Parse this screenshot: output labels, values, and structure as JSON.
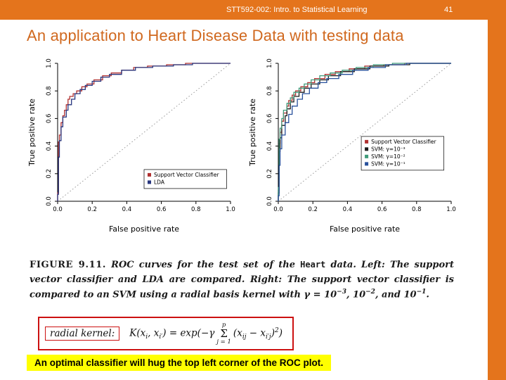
{
  "header": {
    "course": "STT592-002: Intro. to Statistical Learning",
    "page": "41",
    "accent": "#e4741c"
  },
  "title": "An application to Heart Disease Data with testing data",
  "chart_data": [
    {
      "type": "line",
      "title": "",
      "xlabel": "False positive rate",
      "ylabel": "True positive rate",
      "xlim": [
        0,
        1
      ],
      "ylim": [
        0,
        1
      ],
      "xticks": [
        0.0,
        0.2,
        0.4,
        0.6,
        0.8,
        1.0
      ],
      "yticks": [
        0.0,
        0.2,
        0.4,
        0.6,
        0.8,
        1.0
      ],
      "grid": false,
      "diagonal": true,
      "legend_position": "bottom-right",
      "legend": {
        "x": 0.5,
        "y": 0.23
      },
      "series": [
        {
          "name": "Support Vector Classifier",
          "color": "#b03030",
          "points": [
            [
              0,
              0
            ],
            [
              0.005,
              0.06
            ],
            [
              0.01,
              0.43
            ],
            [
              0.02,
              0.48
            ],
            [
              0.03,
              0.57
            ],
            [
              0.04,
              0.62
            ],
            [
              0.05,
              0.66
            ],
            [
              0.06,
              0.7
            ],
            [
              0.07,
              0.74
            ],
            [
              0.09,
              0.76
            ],
            [
              0.11,
              0.78
            ],
            [
              0.14,
              0.8
            ],
            [
              0.17,
              0.83
            ],
            [
              0.21,
              0.85
            ],
            [
              0.26,
              0.88
            ],
            [
              0.31,
              0.91
            ],
            [
              0.37,
              0.93
            ],
            [
              0.44,
              0.95
            ],
            [
              0.52,
              0.97
            ],
            [
              0.63,
              0.98
            ],
            [
              0.74,
              0.99
            ],
            [
              0.84,
              1.0
            ],
            [
              1,
              1
            ]
          ]
        },
        {
          "name": "LDA",
          "color": "#27357e",
          "points": [
            [
              0,
              0
            ],
            [
              0.005,
              0.05
            ],
            [
              0.01,
              0.32
            ],
            [
              0.02,
              0.44
            ],
            [
              0.03,
              0.54
            ],
            [
              0.05,
              0.61
            ],
            [
              0.06,
              0.66
            ],
            [
              0.08,
              0.7
            ],
            [
              0.1,
              0.74
            ],
            [
              0.13,
              0.78
            ],
            [
              0.16,
              0.81
            ],
            [
              0.2,
              0.84
            ],
            [
              0.25,
              0.87
            ],
            [
              0.3,
              0.9
            ],
            [
              0.37,
              0.92
            ],
            [
              0.45,
              0.95
            ],
            [
              0.55,
              0.97
            ],
            [
              0.67,
              0.98
            ],
            [
              0.78,
              0.99
            ],
            [
              0.88,
              1.0
            ],
            [
              1,
              1
            ]
          ]
        }
      ]
    },
    {
      "type": "line",
      "title": "",
      "xlabel": "False positive rate",
      "ylabel": "True positive rate",
      "xlim": [
        0,
        1
      ],
      "ylim": [
        0,
        1
      ],
      "xticks": [
        0.0,
        0.2,
        0.4,
        0.6,
        0.8,
        1.0
      ],
      "yticks": [
        0.0,
        0.2,
        0.4,
        0.6,
        0.8,
        1.0
      ],
      "grid": false,
      "diagonal": true,
      "legend_position": "right-middle",
      "legend": {
        "x": 0.48,
        "y": 0.47
      },
      "series": [
        {
          "name": "Support Vector Classifier",
          "color": "#b03030",
          "points": [
            [
              0,
              0
            ],
            [
              0.005,
              0.08
            ],
            [
              0.01,
              0.42
            ],
            [
              0.02,
              0.5
            ],
            [
              0.03,
              0.58
            ],
            [
              0.05,
              0.64
            ],
            [
              0.06,
              0.69
            ],
            [
              0.08,
              0.73
            ],
            [
              0.1,
              0.77
            ],
            [
              0.13,
              0.8
            ],
            [
              0.17,
              0.83
            ],
            [
              0.21,
              0.86
            ],
            [
              0.27,
              0.89
            ],
            [
              0.33,
              0.92
            ],
            [
              0.41,
              0.94
            ],
            [
              0.5,
              0.96
            ],
            [
              0.61,
              0.98
            ],
            [
              0.73,
              0.99
            ],
            [
              0.85,
              1.0
            ],
            [
              1,
              1
            ]
          ]
        },
        {
          "name": "SVM: γ=10⁻³",
          "color": "#1a1a1a",
          "points": [
            [
              0,
              0
            ],
            [
              0.005,
              0.06
            ],
            [
              0.01,
              0.36
            ],
            [
              0.02,
              0.46
            ],
            [
              0.04,
              0.55
            ],
            [
              0.05,
              0.62
            ],
            [
              0.07,
              0.67
            ],
            [
              0.09,
              0.72
            ],
            [
              0.12,
              0.76
            ],
            [
              0.15,
              0.79
            ],
            [
              0.19,
              0.82
            ],
            [
              0.24,
              0.85
            ],
            [
              0.29,
              0.88
            ],
            [
              0.36,
              0.91
            ],
            [
              0.44,
              0.94
            ],
            [
              0.53,
              0.96
            ],
            [
              0.64,
              0.98
            ],
            [
              0.76,
              0.99
            ],
            [
              0.87,
              1.0
            ],
            [
              1,
              1
            ]
          ]
        },
        {
          "name": "SVM: γ=10⁻²",
          "color": "#3f9b7a",
          "points": [
            [
              0,
              0
            ],
            [
              0.005,
              0.1
            ],
            [
              0.01,
              0.45
            ],
            [
              0.02,
              0.53
            ],
            [
              0.03,
              0.6
            ],
            [
              0.05,
              0.66
            ],
            [
              0.07,
              0.71
            ],
            [
              0.09,
              0.75
            ],
            [
              0.12,
              0.79
            ],
            [
              0.15,
              0.82
            ],
            [
              0.19,
              0.85
            ],
            [
              0.24,
              0.88
            ],
            [
              0.3,
              0.91
            ],
            [
              0.37,
              0.93
            ],
            [
              0.45,
              0.95
            ],
            [
              0.55,
              0.97
            ],
            [
              0.66,
              0.99
            ],
            [
              0.78,
              1.0
            ],
            [
              1,
              1
            ]
          ]
        },
        {
          "name": "SVM: γ=10⁻¹",
          "color": "#27509b",
          "points": [
            [
              0,
              0
            ],
            [
              0.005,
              0.04
            ],
            [
              0.01,
              0.26
            ],
            [
              0.02,
              0.38
            ],
            [
              0.04,
              0.48
            ],
            [
              0.06,
              0.57
            ],
            [
              0.08,
              0.63
            ],
            [
              0.11,
              0.69
            ],
            [
              0.14,
              0.74
            ],
            [
              0.18,
              0.78
            ],
            [
              0.23,
              0.82
            ],
            [
              0.28,
              0.86
            ],
            [
              0.35,
              0.89
            ],
            [
              0.43,
              0.92
            ],
            [
              0.52,
              0.95
            ],
            [
              0.62,
              0.97
            ],
            [
              0.74,
              0.99
            ],
            [
              0.86,
              1.0
            ],
            [
              1,
              1
            ]
          ]
        }
      ]
    }
  ],
  "caption": {
    "label": "FIGURE 9.11.",
    "t1": " ROC curves for the test set of the ",
    "code": "Heart",
    "t2": " data. ",
    "left": "Left:",
    "t3": " The support vector classifier and LDA are compared. ",
    "right": "Right:",
    "t4": " The support vector classifier is compared to an SVM using a radial basis kernel with γ = 10",
    "e1": "−3",
    "t5": ", 10",
    "e2": "−2",
    "t6": ", and 10",
    "e3": "−1",
    "t7": "."
  },
  "kernel_box": {
    "label": "radial kernel:",
    "formula": {
      "f1": "K(x",
      "s1": "i",
      "f2": ", x",
      "s2": "i′",
      "f3": ") = exp(−γ",
      "sum_top": "p",
      "sum": "Σ",
      "sum_bot": "j = 1",
      "f4": "(x",
      "s3": "ij",
      "f5": " − x",
      "s4": "i′j",
      "f6": ")",
      "p1": "2",
      "f7": ")"
    }
  },
  "footer_note": "An optimal classifier will hug the top left corner of the ROC plot."
}
